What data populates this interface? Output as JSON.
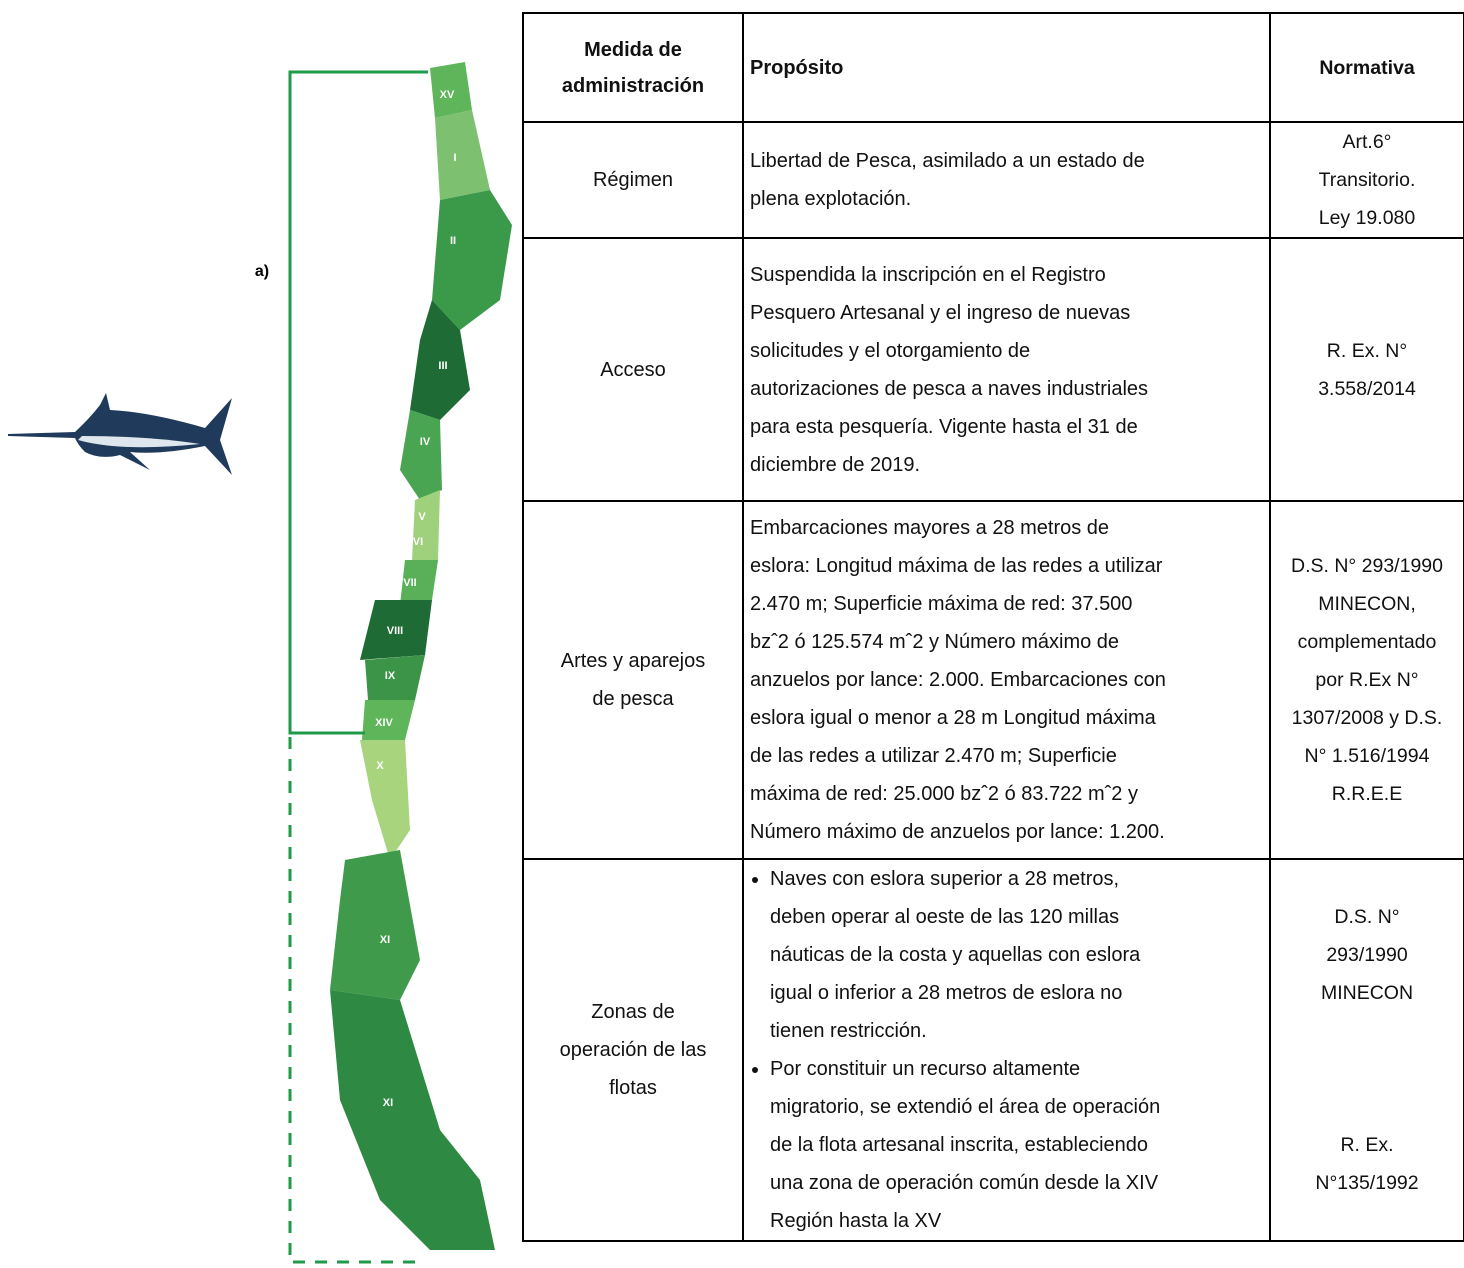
{
  "figure": {
    "label": "a)",
    "regions": [
      "XV",
      "I",
      "II",
      "III",
      "IV",
      "V",
      "VI",
      "VII",
      "VIII",
      "IX",
      "XIV",
      "X",
      "XI",
      "XI"
    ]
  },
  "table": {
    "headers": [
      [
        "Medida de",
        "administración"
      ],
      [
        "Propósito"
      ],
      [
        "Normativa"
      ]
    ],
    "rows": [
      {
        "medida": [
          "Régimen"
        ],
        "proposito": [
          "Libertad de Pesca, asimilado a un estado de",
          "plena explotación."
        ],
        "normativa": [
          [
            "Art.6°",
            "Transitorio.",
            "Ley 19.080"
          ]
        ]
      },
      {
        "medida": [
          "Acceso"
        ],
        "proposito": [
          "Suspendida la inscripción en el Registro",
          "Pesquero Artesanal  y el ingreso de nuevas",
          "solicitudes y el otorgamiento de",
          "autorizaciones de pesca a naves industriales",
          "para esta pesquería. Vigente hasta el 31 de",
          "diciembre de 2019."
        ],
        "normativa": [
          [
            "R. Ex. N°",
            "3.558/2014"
          ]
        ]
      },
      {
        "medida": [
          "Artes y aparejos",
          "de pesca"
        ],
        "proposito": [
          "Embarcaciones mayores a 28 metros de",
          "eslora: Longitud máxima de las redes a utilizar",
          "2.470 m; Superficie máxima de red: 37.500",
          "bzˆ2 ó 125.574  mˆ2 y Número máximo de",
          "anzuelos por lance: 2.000. Embarcaciones con",
          "eslora igual o menor a 28 m Longitud máxima",
          "de las redes a utilizar 2.470 m; Superficie",
          "máxima de red: 25.000  bzˆ2 ó 83.722 mˆ2  y",
          "Número máximo de anzuelos por lance: 1.200."
        ],
        "normativa": [
          [
            "D.S. N° 293/1990",
            "MINECON,",
            "complementado",
            "por R.Ex N°",
            "1307/2008 y D.S.",
            "N° 1.516/1994",
            "R.R.E.E"
          ]
        ]
      },
      {
        "medida": [
          "Zonas de",
          "operación de las",
          "flotas"
        ],
        "proposito_items": [
          [
            "Naves con eslora superior a 28 metros,",
            "deben operar al oeste de las 120 millas",
            "náuticas de la costa y aquellas con eslora",
            "igual o inferior a 28 metros de eslora no",
            "tienen restricción."
          ],
          [
            "Por constituir un recurso altamente",
            "migratorio, se extendió el área de operación",
            "de la flota artesanal inscrita, estableciendo",
            "una zona de operación común desde la XIV",
            "Región hasta la XV"
          ]
        ],
        "normativa": [
          [
            "D.S. N°",
            "293/1990",
            "MINECON"
          ],
          [
            "R. Ex.",
            "N°135/1992"
          ]
        ]
      }
    ]
  }
}
